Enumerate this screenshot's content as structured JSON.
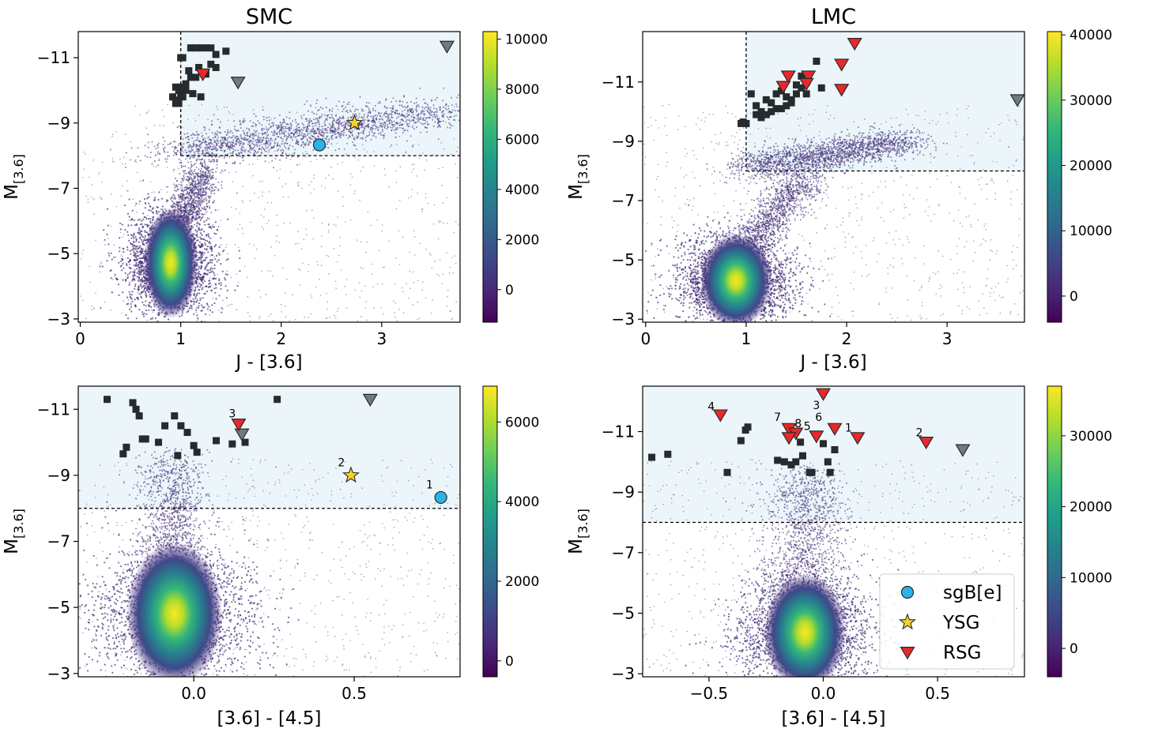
{
  "chart_data": [
    {
      "type": "scatter",
      "panel": "top-left",
      "title": "SMC",
      "xlabel": "J - [3.6]",
      "ylabel_main": "M",
      "ylabel_sub": "[3.6]",
      "xlim": [
        -0.02,
        3.78
      ],
      "ylim": [
        -2.9,
        -11.8
      ],
      "xticks": [
        0,
        1,
        2,
        3
      ],
      "xtick_labels": [
        "0",
        "1",
        "2",
        "3"
      ],
      "yticks": [
        -3,
        -5,
        -7,
        -9,
        -11
      ],
      "ytick_labels": [
        "−3",
        "−5",
        "−7",
        "−9",
        "−11"
      ],
      "colorbar": {
        "range": [
          -1300,
          10300
        ],
        "ticks": [
          0,
          2000,
          4000,
          6000,
          8000,
          10000
        ],
        "tick_labels": [
          "0",
          "2000",
          "4000",
          "6000",
          "8000",
          "10000"
        ]
      },
      "selection": {
        "x_min": 1.0,
        "y_bright": -8.0
      },
      "density_core": {
        "x": 0.9,
        "y": -4.4,
        "sx": 0.09,
        "sy": 0.35
      },
      "sequences": [
        {
          "x0": 0.7,
          "y0": -4.2,
          "x1": 1.25,
          "y1": -7.6,
          "width": 0.09
        },
        {
          "x0": 1.0,
          "y0": -8.1,
          "x1": 3.6,
          "y1": -9.4,
          "width": 0.28
        }
      ],
      "squares_x": [
        1.1,
        1.15,
        1.2,
        1.25,
        1.3,
        1.35,
        1.45,
        1.0,
        1.02,
        1.08,
        1.18,
        1.25,
        1.3,
        1.35,
        1.1,
        1.15,
        1.05,
        0.95,
        0.98,
        1.0,
        1.02,
        0.97,
        0.92,
        0.95,
        0.98,
        1.12,
        1.2,
        1.05,
        1.0
      ],
      "squares_y": [
        -11.3,
        -11.3,
        -11.3,
        -11.3,
        -11.3,
        -11.1,
        -11.2,
        -11.0,
        -11.0,
        -10.6,
        -10.7,
        -10.5,
        -10.8,
        -10.7,
        -10.4,
        -10.4,
        -10.2,
        -10.1,
        -10.0,
        -9.9,
        -9.8,
        -9.7,
        -9.8,
        -9.6,
        -9.6,
        -9.9,
        -9.8,
        -10.0,
        -10.1
      ],
      "rsg": [
        {
          "x": 1.22,
          "y": -10.5
        }
      ],
      "grey": [
        {
          "x": 1.57,
          "y": -10.25
        },
        {
          "x": 3.65,
          "y": -11.35
        }
      ],
      "ysg": [
        {
          "x": 2.73,
          "y": -9.0
        }
      ],
      "sgbe": [
        {
          "x": 2.38,
          "y": -8.33
        }
      ],
      "annotations": []
    },
    {
      "type": "scatter",
      "panel": "top-right",
      "title": "LMC",
      "xlabel": "J - [3.6]",
      "ylabel_main": "M",
      "ylabel_sub": "[3.6]",
      "xlim": [
        -0.03,
        3.77
      ],
      "ylim": [
        -2.9,
        -12.7
      ],
      "xticks": [
        0,
        1,
        2,
        3
      ],
      "xtick_labels": [
        "0",
        "1",
        "2",
        "3"
      ],
      "yticks": [
        -3,
        -5,
        -7,
        -9,
        -11
      ],
      "ytick_labels": [
        "−3",
        "−5",
        "−7",
        "−9",
        "−11"
      ],
      "colorbar": {
        "range": [
          -4000,
          40500
        ],
        "ticks": [
          0,
          10000,
          20000,
          30000,
          40000
        ],
        "tick_labels": [
          "0",
          "10000",
          "20000",
          "30000",
          "40000"
        ]
      },
      "selection": {
        "x_min": 1.0,
        "y_bright": -8.0
      },
      "density_core": {
        "x": 0.9,
        "y": -4.0,
        "sx": 0.12,
        "sy": 0.33
      },
      "sequences": [
        {
          "x0": 0.6,
          "y0": -4.0,
          "x1": 1.6,
          "y1": -7.8,
          "width": 0.12
        },
        {
          "x0": 1.0,
          "y0": -8.1,
          "x1": 2.6,
          "y1": -9.0,
          "width": 0.18
        }
      ],
      "squares_x": [
        1.05,
        1.1,
        1.2,
        1.3,
        1.35,
        1.4,
        1.5,
        1.55,
        1.6,
        1.45,
        1.25,
        1.15,
        1.3,
        1.4,
        1.55,
        1.6,
        1.7,
        1.75,
        1.0,
        0.95,
        0.97,
        1.1,
        1.2,
        1.35,
        1.45,
        1.5,
        1.25,
        1.15
      ],
      "squares_y": [
        -10.6,
        -10.2,
        -10.4,
        -10.6,
        -10.7,
        -10.5,
        -10.9,
        -11.2,
        -11.0,
        -10.3,
        -10.0,
        -9.8,
        -10.1,
        -10.2,
        -10.8,
        -10.6,
        -11.7,
        -10.8,
        -9.6,
        -9.6,
        -9.65,
        -9.9,
        -9.9,
        -10.1,
        -10.4,
        -10.6,
        -10.3,
        -10.0
      ],
      "rsg": [
        {
          "x": 2.08,
          "y": -12.3
        },
        {
          "x": 1.95,
          "y": -11.6
        },
        {
          "x": 1.42,
          "y": -11.2
        },
        {
          "x": 1.62,
          "y": -11.2
        },
        {
          "x": 1.37,
          "y": -10.85
        },
        {
          "x": 1.6,
          "y": -10.95
        },
        {
          "x": 1.95,
          "y": -10.75
        }
      ],
      "grey": [
        {
          "x": 3.7,
          "y": -10.4
        }
      ],
      "ysg": [],
      "sgbe": [],
      "annotations": []
    },
    {
      "type": "scatter",
      "panel": "bottom-left",
      "title": "",
      "xlabel": "[3.6] - [4.5]",
      "ylabel_main": "M",
      "ylabel_sub": "[3.6]",
      "xlim": [
        -0.36,
        0.83
      ],
      "ylim": [
        -2.9,
        -11.7
      ],
      "xticks": [
        0.0,
        0.5
      ],
      "xtick_labels": [
        "0.0",
        "0.5"
      ],
      "yticks": [
        -3,
        -5,
        -7,
        -9,
        -11
      ],
      "ytick_labels": [
        "−3",
        "−5",
        "−7",
        "−9",
        "−11"
      ],
      "colorbar": {
        "range": [
          -400,
          6900
        ],
        "ticks": [
          0,
          2000,
          4000,
          6000
        ],
        "tick_labels": [
          "0",
          "2000",
          "4000",
          "6000"
        ]
      },
      "selection": {
        "x_min": null,
        "y_bright": -8.0
      },
      "density_core": {
        "x": -0.06,
        "y": -4.4,
        "sx": 0.05,
        "sy": 0.45
      },
      "sequences": [
        {
          "x0": -0.07,
          "y0": -4.0,
          "x1": -0.07,
          "y1": -9.5,
          "width": 0.05
        }
      ],
      "squares_x": [
        -0.27,
        -0.19,
        -0.18,
        -0.17,
        -0.15,
        -0.09,
        -0.06,
        -0.04,
        -0.02,
        0.07,
        0.12,
        0.16,
        0.26,
        -0.16,
        -0.11,
        -0.21,
        -0.22,
        -0.05,
        0.0,
        0.01
      ],
      "squares_y": [
        -11.3,
        -11.2,
        -11.0,
        -10.8,
        -10.1,
        -10.5,
        -10.8,
        -10.5,
        -10.3,
        -10.05,
        -9.95,
        -10.0,
        -11.3,
        -10.1,
        -10.0,
        -9.85,
        -9.65,
        -9.6,
        -9.9,
        -9.7
      ],
      "rsg": [
        {
          "x": 0.14,
          "y": -10.55
        }
      ],
      "grey": [
        {
          "x": 0.15,
          "y": -10.25
        },
        {
          "x": 0.55,
          "y": -11.3
        }
      ],
      "ysg": [
        {
          "x": 0.49,
          "y": -9.0
        }
      ],
      "sgbe": [
        {
          "x": 0.77,
          "y": -8.33
        }
      ],
      "annotations": [
        {
          "text": "3",
          "x": 0.12,
          "y": -10.75
        },
        {
          "text": "2",
          "x": 0.46,
          "y": -9.27
        },
        {
          "text": "1",
          "x": 0.735,
          "y": -8.6
        }
      ]
    },
    {
      "type": "scatter",
      "panel": "bottom-right",
      "title": "",
      "xlabel": "[3.6] - [4.5]",
      "ylabel_main": "M",
      "ylabel_sub": "[3.6]",
      "xlim": [
        -0.79,
        0.88
      ],
      "ylim": [
        -2.9,
        -12.5
      ],
      "xticks": [
        -0.5,
        0.0,
        0.5
      ],
      "xtick_labels": [
        "−0.5",
        "0.0",
        "0.5"
      ],
      "yticks": [
        -3,
        -5,
        -7,
        -9,
        -11
      ],
      "ytick_labels": [
        "−3",
        "−5",
        "−7",
        "−9",
        "−11"
      ],
      "colorbar": {
        "range": [
          -4000,
          37000
        ],
        "ticks": [
          0,
          10000,
          20000,
          30000
        ],
        "tick_labels": [
          "0",
          "10000",
          "20000",
          "30000"
        ]
      },
      "selection": {
        "x_min": null,
        "y_bright": -8.0
      },
      "density_core": {
        "x": -0.08,
        "y": -4.0,
        "sx": 0.06,
        "sy": 0.4
      },
      "sequences": [
        {
          "x0": -0.1,
          "y0": -4.0,
          "x1": -0.07,
          "y1": -9.7,
          "width": 0.09
        }
      ],
      "squares_x": [
        -0.75,
        -0.68,
        -0.42,
        -0.36,
        -0.34,
        -0.33,
        -0.2,
        -0.17,
        -0.14,
        -0.12,
        -0.09,
        -0.06,
        -0.05,
        0.0,
        0.02,
        0.03,
        0.05,
        -0.1
      ],
      "squares_y": [
        -10.15,
        -10.25,
        -9.65,
        -10.7,
        -11.05,
        -11.15,
        -10.05,
        -10.0,
        -9.9,
        -10.0,
        -10.2,
        -9.65,
        -9.65,
        -10.6,
        -10.0,
        -9.65,
        -10.4,
        -10.65
      ],
      "rsg": [
        {
          "x": -0.45,
          "y": -11.55
        },
        {
          "x": -0.15,
          "y": -11.1
        },
        {
          "x": -0.12,
          "y": -10.95
        },
        {
          "x": -0.03,
          "y": -10.85
        },
        {
          "x": 0.05,
          "y": -11.1
        },
        {
          "x": 0.15,
          "y": -10.8
        },
        {
          "x": 0.45,
          "y": -10.65
        },
        {
          "x": -0.15,
          "y": -10.8
        },
        {
          "x": 0.0,
          "y": -12.25
        }
      ],
      "grey": [
        {
          "x": 0.61,
          "y": -10.4
        }
      ],
      "ysg": [],
      "sgbe": [],
      "annotations": [
        {
          "text": "4",
          "x": -0.49,
          "y": -11.7
        },
        {
          "text": "7",
          "x": -0.2,
          "y": -11.35
        },
        {
          "text": "8",
          "x": -0.11,
          "y": -11.15
        },
        {
          "text": "5",
          "x": -0.07,
          "y": -11.05
        },
        {
          "text": "6",
          "x": -0.02,
          "y": -11.35
        },
        {
          "text": "1",
          "x": 0.11,
          "y": -11.0
        },
        {
          "text": "2",
          "x": 0.42,
          "y": -10.85
        },
        {
          "text": "3",
          "x": -0.03,
          "y": -11.75
        }
      ],
      "legend": {
        "position": "lower-right",
        "entries": [
          {
            "label": "sgB[e]",
            "marker": "circle"
          },
          {
            "label": "YSG",
            "marker": "star"
          },
          {
            "label": "RSG",
            "marker": "triangle-down"
          }
        ]
      }
    }
  ],
  "colors": {
    "square": "#262b2e",
    "rsg": "#e8282b",
    "grey": "#6f7b82",
    "ysg": "#f2d32a",
    "sgbe": "#2bb3e8",
    "selection_fill": "#ecf6fa",
    "viridis": [
      "#440154",
      "#482878",
      "#3e4989",
      "#31688e",
      "#26828e",
      "#1f9e89",
      "#35b779",
      "#6ece58",
      "#b5de2b",
      "#fde725"
    ]
  }
}
